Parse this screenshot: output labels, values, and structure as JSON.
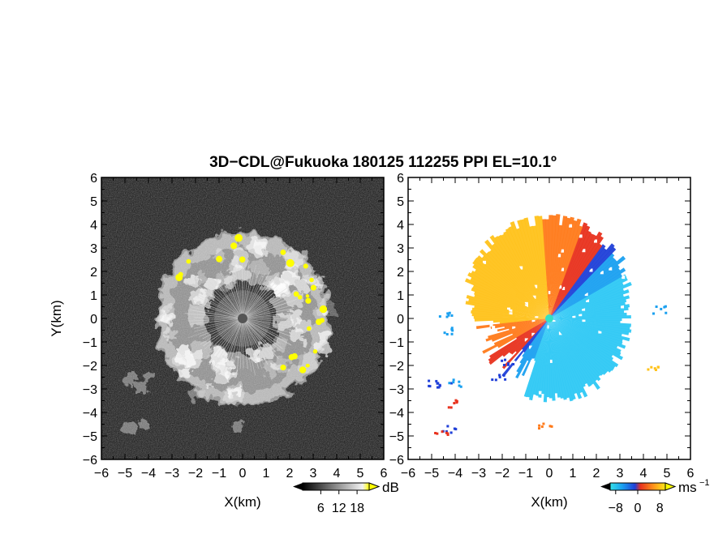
{
  "title": "3D−CDL@Fukuoka 180125 112255 PPI EL=10.1º",
  "colors": {
    "frame": "#000000",
    "reflectivity_background": "#2a2a2a",
    "reflectivity_echo": "#e8e8e8",
    "reflectivity_high": "#ffff00",
    "velocity_negative_light": "#2ec8f4",
    "velocity_negative_strong": "#1f3fd8",
    "velocity_positive_strong": "#e8321e",
    "velocity_positive_light": "#ffc21a",
    "velocity_center": "#35e0c6"
  },
  "chart_data": [
    {
      "type": "heatmap",
      "panel": "reflectivity",
      "xlabel": "X(km)",
      "ylabel": "Y(km)",
      "xlim": [
        -6,
        6
      ],
      "ylim": [
        -6,
        6
      ],
      "x_ticks": [
        "−6",
        "−5",
        "−4",
        "−3",
        "−2",
        "−1",
        "0",
        "1",
        "2",
        "3",
        "4",
        "5",
        "6"
      ],
      "y_ticks": [
        "6",
        "5",
        "4",
        "3",
        "2",
        "1",
        "0",
        "−1",
        "−2",
        "−3",
        "−4",
        "−5",
        "−6"
      ],
      "colorbar": {
        "unit": "dB",
        "tick_labels": [
          "6",
          "12",
          "18"
        ],
        "ticks": [
          6,
          12,
          18
        ],
        "range": [
          0,
          22
        ]
      },
      "echo_ring_km": {
        "inner": 1.6,
        "outer": 3.7
      }
    },
    {
      "type": "heatmap",
      "panel": "doppler_velocity",
      "xlabel": "X(km)",
      "xlim": [
        -6,
        6
      ],
      "ylim": [
        -6,
        6
      ],
      "x_ticks": [
        "−6",
        "−5",
        "−4",
        "−3",
        "−2",
        "−1",
        "0",
        "1",
        "2",
        "3",
        "4",
        "5",
        "6"
      ],
      "y_ticks": [
        "6",
        "5",
        "4",
        "3",
        "2",
        "1",
        "0",
        "−1",
        "−2",
        "−3",
        "−4",
        "−5",
        "−6"
      ],
      "colorbar": {
        "unit": "ms",
        "unit_exponent": "−1",
        "tick_labels": [
          "−8",
          "0",
          "8"
        ],
        "ticks": [
          -8,
          0,
          8
        ],
        "range": [
          -10,
          10
        ]
      }
    }
  ]
}
